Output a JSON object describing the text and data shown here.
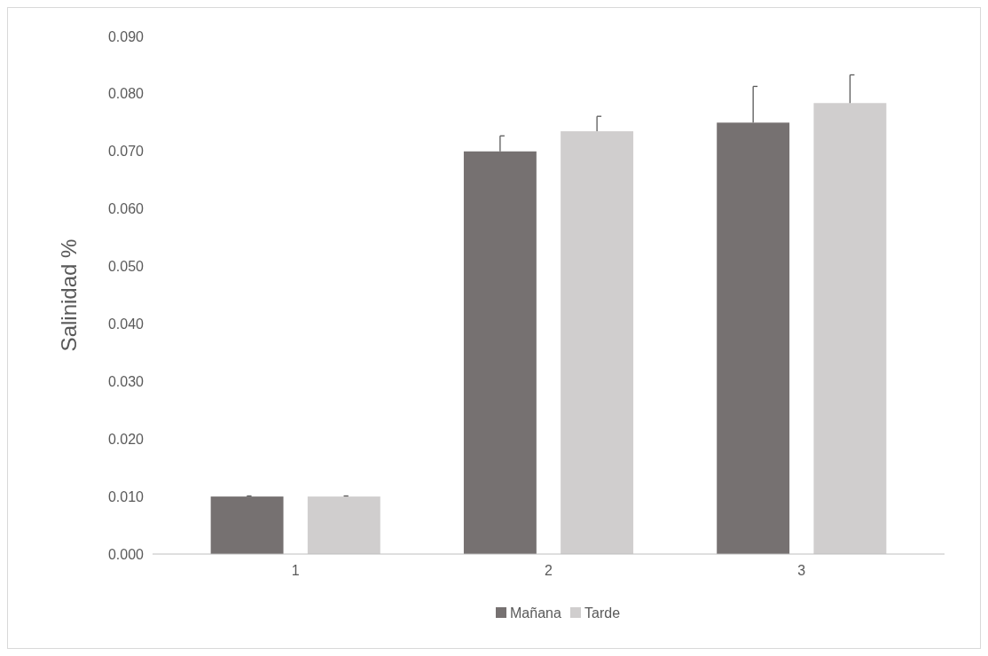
{
  "chart_data": {
    "type": "bar",
    "ylabel": "Salinidad %",
    "categories": [
      "1",
      "2",
      "3"
    ],
    "series": [
      {
        "name": "Mañana",
        "color": "#767171",
        "values": [
          0.01,
          0.07,
          0.075
        ],
        "errors": [
          [
            0.01,
            0.0101
          ],
          [
            0.07,
            0.0727
          ],
          [
            0.075,
            0.0813
          ]
        ]
      },
      {
        "name": "Tarde",
        "color": "#d0cece",
        "values": [
          0.01,
          0.0735,
          0.0784
        ],
        "errors": [
          [
            0.01,
            0.0101
          ],
          [
            0.0735,
            0.0761
          ],
          [
            0.0784,
            0.0833
          ]
        ]
      }
    ],
    "ylim": [
      0,
      0.09
    ],
    "yticks": [
      {
        "value": 0,
        "label": "0.000"
      },
      {
        "value": 0.01,
        "label": "0.010"
      },
      {
        "value": 0.02,
        "label": "0.020"
      },
      {
        "value": 0.03,
        "label": "0.030"
      },
      {
        "value": 0.04,
        "label": "0.040"
      },
      {
        "value": 0.05,
        "label": "0.050"
      },
      {
        "value": 0.06,
        "label": "0.060"
      },
      {
        "value": 0.07,
        "label": "0.070"
      },
      {
        "value": 0.08,
        "label": "0.080"
      },
      {
        "value": 0.09,
        "label": "0.090"
      }
    ],
    "grid": false,
    "legend": "bottom"
  }
}
